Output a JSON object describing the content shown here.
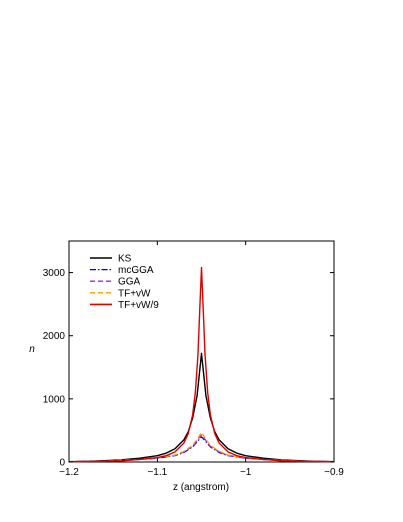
{
  "chart_data": {
    "type": "line",
    "xlabel": "z (angstrom)",
    "ylabel": "n",
    "xlim": [
      -1.2,
      -0.9
    ],
    "ylim": [
      0,
      3500
    ],
    "xticks": [
      -1.2,
      -1.1,
      -1.0,
      -0.9
    ],
    "xtick_labels": [
      "−1.2",
      "−1.1",
      "−1",
      "−0.9"
    ],
    "yticks": [
      0,
      1000,
      2000,
      3000
    ],
    "ytick_labels": [
      "0",
      "1000",
      "2000",
      "3000"
    ],
    "grid": false,
    "legend_position": "top-left",
    "series": [
      {
        "name": "KS",
        "color": "#000000",
        "style": "solid",
        "x": [
          -1.2,
          -1.18,
          -1.16,
          -1.14,
          -1.12,
          -1.1,
          -1.09,
          -1.08,
          -1.07,
          -1.065,
          -1.06,
          -1.055,
          -1.05,
          -1.045,
          -1.04,
          -1.035,
          -1.03,
          -1.02,
          -1.01,
          -1.0,
          -0.98,
          -0.96,
          -0.94,
          -0.92,
          -0.9
        ],
        "y": [
          5,
          10,
          20,
          35,
          60,
          100,
          140,
          210,
          350,
          480,
          700,
          1050,
          1720,
          1050,
          700,
          480,
          350,
          210,
          140,
          100,
          60,
          35,
          20,
          10,
          5
        ]
      },
      {
        "name": "mcGGA",
        "color": "#0000ee",
        "style": "dashdot",
        "x": [
          -1.2,
          -1.16,
          -1.12,
          -1.1,
          -1.08,
          -1.07,
          -1.06,
          -1.055,
          -1.05,
          -1.045,
          -1.04,
          -1.03,
          -1.02,
          -1.0,
          -0.98,
          -0.94,
          -0.9
        ],
        "y": [
          5,
          15,
          40,
          60,
          100,
          150,
          240,
          320,
          400,
          320,
          240,
          150,
          100,
          60,
          40,
          15,
          5
        ]
      },
      {
        "name": "GGA",
        "color": "#9a30c8",
        "style": "dashed",
        "x": [
          -1.2,
          -1.16,
          -1.12,
          -1.1,
          -1.08,
          -1.07,
          -1.06,
          -1.055,
          -1.05,
          -1.045,
          -1.04,
          -1.03,
          -1.02,
          -1.0,
          -0.98,
          -0.94,
          -0.9
        ],
        "y": [
          5,
          15,
          40,
          62,
          105,
          160,
          250,
          340,
          430,
          340,
          250,
          160,
          105,
          62,
          40,
          15,
          5
        ]
      },
      {
        "name": "TF+vW",
        "color": "#ff9900",
        "style": "dashed",
        "x": [
          -1.2,
          -1.16,
          -1.12,
          -1.1,
          -1.08,
          -1.07,
          -1.06,
          -1.055,
          -1.05,
          -1.045,
          -1.04,
          -1.03,
          -1.02,
          -1.0,
          -0.98,
          -0.94,
          -0.9
        ],
        "y": [
          5,
          15,
          42,
          65,
          110,
          170,
          265,
          360,
          470,
          360,
          265,
          170,
          110,
          65,
          42,
          15,
          5
        ]
      },
      {
        "name": "TF+vW/9",
        "color": "#e00000",
        "style": "solid",
        "x": [
          -1.2,
          -1.17,
          -1.14,
          -1.12,
          -1.1,
          -1.09,
          -1.08,
          -1.07,
          -1.065,
          -1.06,
          -1.057,
          -1.054,
          -1.052,
          -1.05,
          -1.048,
          -1.046,
          -1.043,
          -1.04,
          -1.035,
          -1.03,
          -1.02,
          -1.01,
          -1.0,
          -0.98,
          -0.96,
          -0.93,
          -0.9
        ],
        "y": [
          5,
          10,
          20,
          40,
          70,
          100,
          160,
          300,
          450,
          750,
          1100,
          1700,
          2400,
          3080,
          2400,
          1700,
          1100,
          750,
          450,
          300,
          160,
          100,
          70,
          40,
          20,
          10,
          5
        ]
      }
    ]
  }
}
